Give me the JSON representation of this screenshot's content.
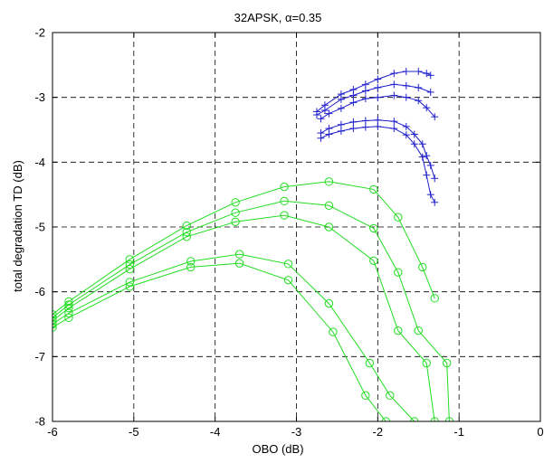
{
  "chart_data": {
    "type": "line",
    "title": "32APSK, α=0.35",
    "xlabel": "OBO (dB)",
    "ylabel": "total degradation TD (dB)",
    "xlim": [
      -6,
      0
    ],
    "ylim": [
      -8,
      -2
    ],
    "xticks": [
      -6,
      -5,
      -4,
      -3,
      -2,
      -1,
      0
    ],
    "xtick_labels": [
      "-6",
      "-5",
      "-4",
      "-3",
      "-2",
      "-1",
      "0"
    ],
    "yticks": [
      -8,
      -7,
      -6,
      -5,
      -4,
      -3,
      -2
    ],
    "ytick_labels": [
      "-8",
      "-7",
      "-6",
      "-5",
      "-4",
      "-3",
      "-2"
    ],
    "grid": true,
    "colors": {
      "green": "#22dd22",
      "blue": "#1f1fcc"
    },
    "series": [
      {
        "color": "green",
        "marker": "circle",
        "x": [
          -6.0,
          -5.8,
          -5.05,
          -4.35,
          -3.75,
          -3.15,
          -2.6,
          -2.05,
          -1.75,
          -1.45,
          -1.3
        ],
        "y": [
          -6.35,
          -6.15,
          -5.5,
          -4.98,
          -4.62,
          -4.38,
          -4.3,
          -4.42,
          -4.85,
          -5.62,
          -6.1
        ]
      },
      {
        "color": "green",
        "marker": "circle",
        "x": [
          -6.0,
          -5.8,
          -5.05,
          -4.35,
          -3.75,
          -3.15,
          -2.6,
          -2.05,
          -1.75,
          -1.5,
          -1.15,
          -1.12
        ],
        "y": [
          -6.4,
          -6.2,
          -5.58,
          -5.08,
          -4.78,
          -4.6,
          -4.67,
          -5.02,
          -5.7,
          -6.6,
          -7.1,
          -8.0
        ]
      },
      {
        "color": "green",
        "marker": "circle",
        "x": [
          -6.0,
          -5.8,
          -5.05,
          -4.35,
          -3.75,
          -3.15,
          -2.6,
          -2.05,
          -1.75,
          -1.4,
          -1.3
        ],
        "y": [
          -6.45,
          -6.25,
          -5.65,
          -5.15,
          -4.92,
          -4.82,
          -5.0,
          -5.52,
          -6.6,
          -7.1,
          -8.0
        ]
      },
      {
        "color": "green",
        "marker": "circle",
        "x": [
          -6.0,
          -5.8,
          -5.05,
          -4.3,
          -3.7,
          -3.1,
          -2.6,
          -2.1,
          -1.85,
          -1.55
        ],
        "y": [
          -6.5,
          -6.33,
          -5.85,
          -5.53,
          -5.42,
          -5.57,
          -6.18,
          -7.1,
          -7.6,
          -8.0
        ]
      },
      {
        "color": "green",
        "marker": "circle",
        "x": [
          -6.0,
          -5.8,
          -5.05,
          -4.3,
          -3.7,
          -3.1,
          -2.55,
          -2.15,
          -1.9
        ],
        "y": [
          -6.55,
          -6.4,
          -5.92,
          -5.62,
          -5.56,
          -5.82,
          -6.62,
          -7.6,
          -8.0
        ]
      },
      {
        "color": "blue",
        "marker": "plus",
        "x": [
          -2.75,
          -2.65,
          -2.45,
          -2.3,
          -2.15,
          -2.0,
          -1.8,
          -1.65,
          -1.5,
          -1.4,
          -1.35
        ],
        "y": [
          -3.22,
          -3.12,
          -2.95,
          -2.88,
          -2.8,
          -2.72,
          -2.63,
          -2.6,
          -2.6,
          -2.63,
          -2.66
        ]
      },
      {
        "color": "blue",
        "marker": "plus",
        "x": [
          -2.75,
          -2.65,
          -2.45,
          -2.3,
          -2.15,
          -2.0,
          -1.8,
          -1.65,
          -1.5,
          -1.35
        ],
        "y": [
          -3.27,
          -3.2,
          -3.03,
          -2.97,
          -2.9,
          -2.85,
          -2.8,
          -2.82,
          -2.85,
          -2.92
        ]
      },
      {
        "color": "blue",
        "marker": "plus",
        "x": [
          -2.7,
          -2.6,
          -2.45,
          -2.3,
          -2.15,
          -2.0,
          -1.8,
          -1.65,
          -1.5,
          -1.4,
          -1.3
        ],
        "y": [
          -3.33,
          -3.25,
          -3.17,
          -3.08,
          -3.02,
          -3.0,
          -2.97,
          -3.0,
          -3.05,
          -3.16,
          -3.3
        ]
      },
      {
        "color": "blue",
        "marker": "plus",
        "x": [
          -2.7,
          -2.6,
          -2.45,
          -2.3,
          -2.15,
          -2.0,
          -1.8,
          -1.65,
          -1.55,
          -1.45,
          -1.4,
          -1.35,
          -1.3
        ],
        "y": [
          -3.55,
          -3.48,
          -3.42,
          -3.38,
          -3.36,
          -3.35,
          -3.37,
          -3.45,
          -3.57,
          -3.72,
          -3.9,
          -4.05,
          -4.25
        ]
      },
      {
        "color": "blue",
        "marker": "plus",
        "x": [
          -2.7,
          -2.6,
          -2.45,
          -2.3,
          -2.15,
          -2.0,
          -1.8,
          -1.65,
          -1.55,
          -1.45,
          -1.4,
          -1.35,
          -1.3
        ],
        "y": [
          -3.63,
          -3.57,
          -3.52,
          -3.48,
          -3.46,
          -3.45,
          -3.48,
          -3.58,
          -3.72,
          -3.92,
          -4.2,
          -4.5,
          -4.62
        ]
      }
    ]
  }
}
